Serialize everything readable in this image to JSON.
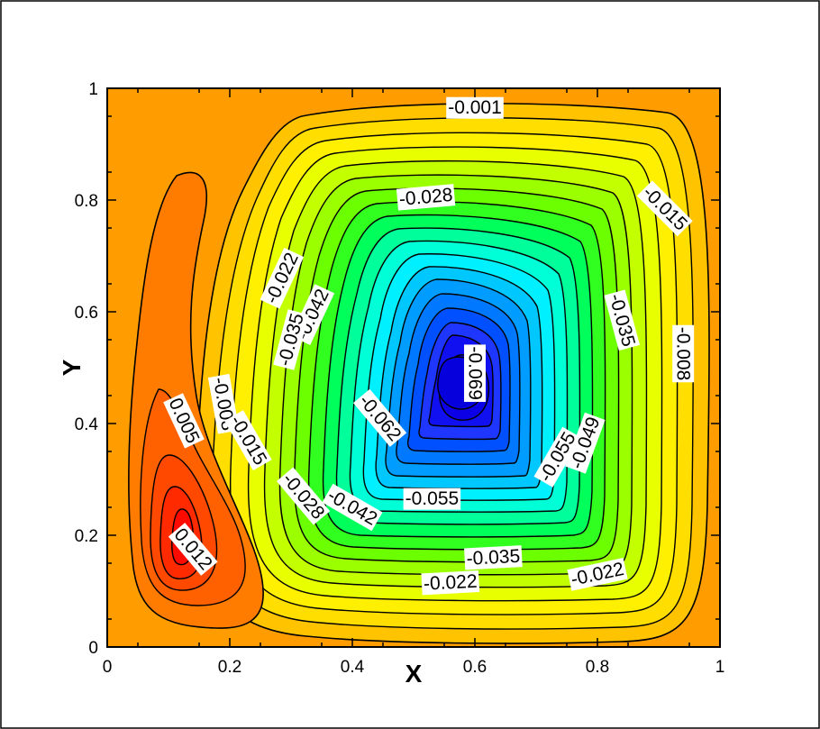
{
  "chart_data": {
    "type": "contour",
    "title": "",
    "xlabel": "X",
    "ylabel": "Y",
    "xlim": [
      0,
      1
    ],
    "ylim": [
      0,
      1
    ],
    "x_ticks": [
      "0",
      "0.2",
      "0.4",
      "0.6",
      "0.8",
      "1"
    ],
    "y_ticks": [
      "0",
      "0.2",
      "0.4",
      "0.6",
      "0.8",
      "1"
    ],
    "grid": false,
    "colormap": [
      "#ff0000",
      "#ff8000",
      "#ffff00",
      "#00ff00",
      "#00ffff",
      "#0000ff"
    ],
    "primary_vortex": {
      "center": [
        0.56,
        0.48
      ],
      "min_value": -0.069
    },
    "secondary_vortex": {
      "center": [
        0.13,
        0.2
      ],
      "max_value": 0.012
    },
    "contour_labels": [
      {
        "text": "-0.001",
        "x": 0.6,
        "y": 0.965,
        "angle": 0
      },
      {
        "text": "-0.028",
        "x": 0.52,
        "y": 0.805,
        "angle": -5
      },
      {
        "text": "-0.015",
        "x": 0.91,
        "y": 0.785,
        "angle": 45
      },
      {
        "text": "-0.022",
        "x": 0.285,
        "y": 0.66,
        "angle": -65
      },
      {
        "text": "-0.042",
        "x": 0.335,
        "y": 0.595,
        "angle": -65
      },
      {
        "text": "-0.035",
        "x": 0.3,
        "y": 0.55,
        "angle": -75
      },
      {
        "text": "-0.035",
        "x": 0.84,
        "y": 0.585,
        "angle": 75
      },
      {
        "text": "-0.069",
        "x": 0.6,
        "y": 0.49,
        "angle": 90
      },
      {
        "text": "-0.008",
        "x": 0.94,
        "y": 0.525,
        "angle": 90
      },
      {
        "text": "-0.008",
        "x": 0.19,
        "y": 0.435,
        "angle": 80
      },
      {
        "text": "0.005",
        "x": 0.125,
        "y": 0.405,
        "angle": 65
      },
      {
        "text": "-0.062",
        "x": 0.445,
        "y": 0.41,
        "angle": 50
      },
      {
        "text": "-0.055",
        "x": 0.735,
        "y": 0.34,
        "angle": -60
      },
      {
        "text": "-0.049",
        "x": 0.78,
        "y": 0.365,
        "angle": -70
      },
      {
        "text": "-0.015",
        "x": 0.23,
        "y": 0.37,
        "angle": 60
      },
      {
        "text": "-0.028",
        "x": 0.32,
        "y": 0.27,
        "angle": 50
      },
      {
        "text": "-0.042",
        "x": 0.4,
        "y": 0.25,
        "angle": 30
      },
      {
        "text": "-0.055",
        "x": 0.53,
        "y": 0.265,
        "angle": 0
      },
      {
        "text": "-0.035",
        "x": 0.63,
        "y": 0.16,
        "angle": -3
      },
      {
        "text": "-0.022",
        "x": 0.56,
        "y": 0.115,
        "angle": -3
      },
      {
        "text": "-0.022",
        "x": 0.8,
        "y": 0.13,
        "angle": -12
      },
      {
        "text": "0.012",
        "x": 0.14,
        "y": 0.175,
        "angle": 50
      }
    ]
  }
}
